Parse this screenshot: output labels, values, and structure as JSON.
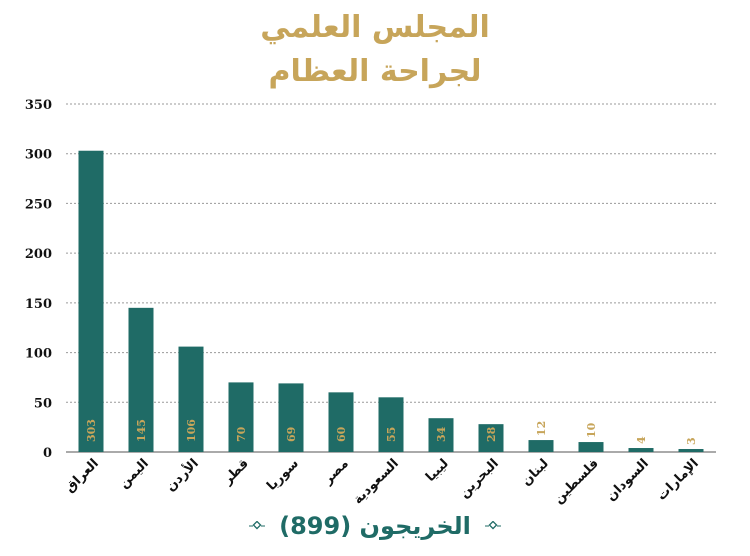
{
  "title": {
    "line1": "المجلس العلمي",
    "line2": "لجراحة العظام"
  },
  "footer": {
    "label": "الخريجون (899)",
    "left_ornament_icon": "diamond-ornament-icon",
    "right_ornament_icon": "diamond-ornament-icon"
  },
  "colors": {
    "bar": "#1f6b66",
    "title": "#c7a55a",
    "label_inside": "#c7a55a",
    "label_outside": "#c7a55a",
    "footer": "#1f6b66",
    "grid": "#9a9a9a"
  },
  "chart_data": {
    "type": "bar",
    "title": "",
    "xlabel": "",
    "ylabel": "",
    "ylim": [
      0,
      350
    ],
    "yticks": [
      0,
      50,
      100,
      150,
      200,
      250,
      300,
      350
    ],
    "grid": true,
    "categories": [
      "العراق",
      "اليمن",
      "الأردن",
      "قطر",
      "سوريا",
      "مصر",
      "السعودية",
      "ليبيا",
      "البحرين",
      "لبنان",
      "فلسطين",
      "السودان",
      "الإمارات"
    ],
    "values": [
      303,
      145,
      106,
      70,
      69,
      60,
      55,
      34,
      28,
      12,
      10,
      4,
      3
    ]
  }
}
